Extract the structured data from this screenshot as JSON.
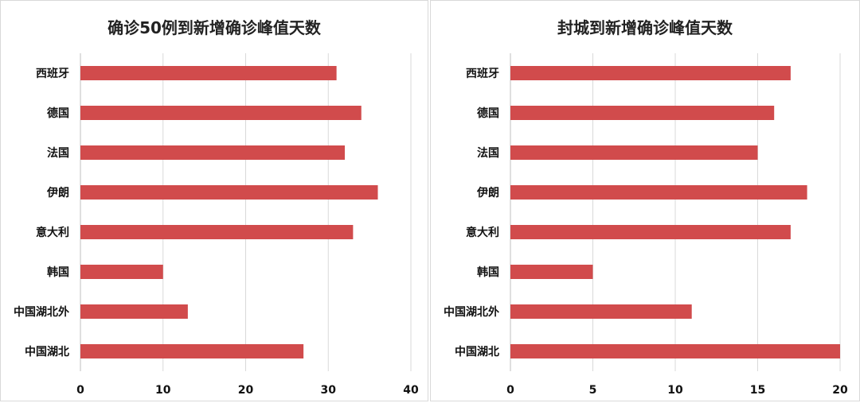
{
  "chart_data": [
    {
      "type": "bar",
      "orientation": "horizontal",
      "title": "确诊50例到新增确诊峰值天数",
      "categories": [
        "西班牙",
        "德国",
        "法国",
        "伊朗",
        "意大利",
        "韩国",
        "中国湖北外",
        "中国湖北"
      ],
      "values": [
        31,
        34,
        32,
        36,
        33,
        10,
        13,
        27
      ],
      "xlim": [
        0,
        40
      ],
      "xticks": [
        0,
        10,
        20,
        30,
        40
      ],
      "grid": true,
      "color": "#d14b4c"
    },
    {
      "type": "bar",
      "orientation": "horizontal",
      "title": "封城到新增确诊峰值天数",
      "categories": [
        "西班牙",
        "德国",
        "法国",
        "伊朗",
        "意大利",
        "韩国",
        "中国湖北外",
        "中国湖北"
      ],
      "values": [
        17,
        16,
        15,
        18,
        17,
        5,
        11,
        20
      ],
      "xlim": [
        0,
        20
      ],
      "xticks": [
        0,
        5,
        10,
        15,
        20
      ],
      "grid": true,
      "color": "#d14b4c"
    }
  ]
}
